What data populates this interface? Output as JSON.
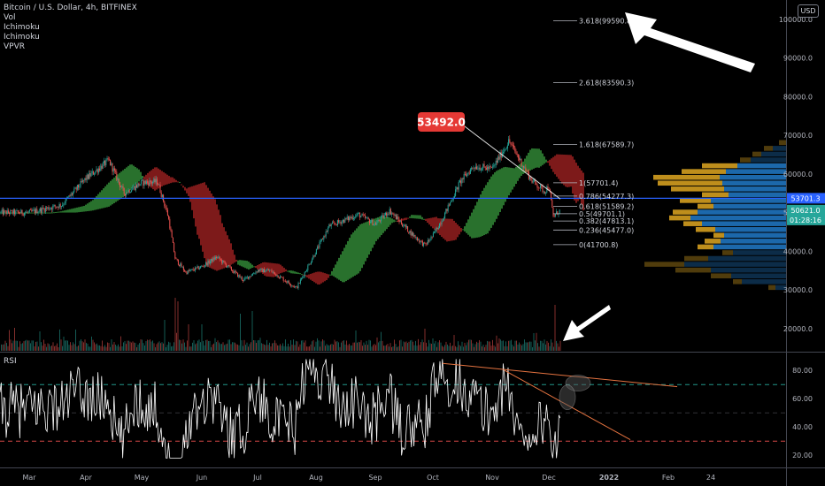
{
  "legend": {
    "symbol": "Bitcoin / U.S. Dollar, 4h, BITFINEX",
    "indicators": [
      "Vol",
      "Ichimoku",
      "Ichimoku",
      "VPVR"
    ]
  },
  "currency": "USD",
  "rsi_label": "RSI",
  "colors": {
    "up": "#26a69a",
    "down": "#ef5350",
    "cloud_bull": "#2e7d32",
    "cloud_bear": "#8b1d1d",
    "hline": "#2962ff",
    "vpvr_gold": "#c8961e",
    "vpvr_blue": "#1e6eb4",
    "price_badge": "#e53935"
  },
  "chart_data": [
    {
      "type": "candlestick",
      "x_ticks": [
        "Mar",
        "Apr",
        "May",
        "Jun",
        "Jul",
        "Aug",
        "Sep",
        "Oct",
        "Nov",
        "Dec",
        "2022",
        "Feb",
        "24"
      ],
      "y_ticks": [
        20000,
        30000,
        40000,
        50000,
        60000,
        70000,
        80000,
        90000,
        100000
      ],
      "ylim": [
        14000,
        105000
      ],
      "y_scale": "linear",
      "price_path_by_month": [
        {
          "x": "Mar",
          "close": 50000
        },
        {
          "x": "Apr",
          "close": 58800
        },
        {
          "x": "May",
          "close": 57700
        },
        {
          "x": "Jun",
          "close": 36000
        },
        {
          "x": "Jul",
          "close": 35000
        },
        {
          "x": "Aug",
          "close": 40000
        },
        {
          "x": "Sep",
          "close": 47000
        },
        {
          "x": "Oct",
          "close": 44000
        },
        {
          "x": "Nov",
          "close": 61300
        },
        {
          "x": "Dec",
          "close": 56900
        }
      ],
      "horizontal_line": 53701.3,
      "price_labels": [
        {
          "text": "53701.3",
          "value": 53701.3,
          "color": "#2962ff"
        },
        {
          "text": "50621.0",
          "value": 50621.0,
          "color": "#26a69a"
        },
        {
          "text": "01:28:16",
          "value": 48100,
          "color": "#26a69a"
        }
      ],
      "fibonacci": [
        {
          "label": "3.618(99590.8)",
          "value": 99590.8
        },
        {
          "label": "2.618(83590.3)",
          "value": 83590.3
        },
        {
          "label": "1.618(67589.7)",
          "value": 67589.7
        },
        {
          "label": "1(57701.4)",
          "value": 57701.4
        },
        {
          "label": "0.786(54277.3)",
          "value": 54277.3
        },
        {
          "label": "0.618(51589.2)",
          "value": 51589.2
        },
        {
          "label": "0.5(49701.1)",
          "value": 49701.1
        },
        {
          "label": "0.382(47813.1)",
          "value": 47813.1
        },
        {
          "label": "0.236(45477.0)",
          "value": 45477.0
        },
        {
          "label": "0(41700.8)",
          "value": 41700.8
        }
      ],
      "annotation": {
        "text": "53492.0"
      }
    },
    {
      "type": "line",
      "name": "RSI",
      "y_ticks": [
        20,
        40,
        60,
        80
      ],
      "ylim": [
        12,
        92
      ],
      "levels": [
        70,
        50,
        30
      ]
    }
  ]
}
